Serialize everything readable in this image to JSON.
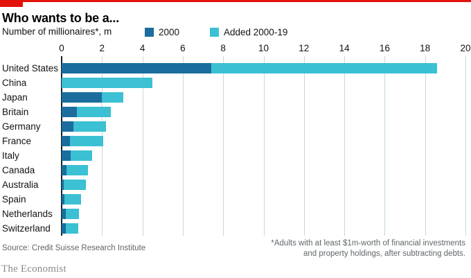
{
  "header": {
    "title": "Who wants to be a...",
    "subtitle": "Number of millionaires*, m"
  },
  "legend": {
    "items": [
      {
        "label": "2000",
        "color": "#1a6d9d"
      },
      {
        "label": "Added 2000-19",
        "color": "#3bc0d4"
      }
    ]
  },
  "chart_data": {
    "type": "bar",
    "orientation": "horizontal",
    "stacked": true,
    "title": "Who wants to be a...",
    "xlabel": "Number of millionaires*, m",
    "ylabel": "",
    "xlim": [
      0,
      20
    ],
    "xticks": [
      0,
      2,
      4,
      6,
      8,
      10,
      12,
      14,
      16,
      18,
      20
    ],
    "grid": "vertical",
    "legend_position": "top",
    "categories": [
      "United States",
      "China",
      "Japan",
      "Britain",
      "Germany",
      "France",
      "Italy",
      "Canada",
      "Australia",
      "Spain",
      "Netherlands",
      "Switzerland"
    ],
    "series": [
      {
        "name": "2000",
        "color": "#1a6d9d",
        "values": [
          7.4,
          0,
          2.0,
          0.75,
          0.6,
          0.4,
          0.45,
          0.25,
          0.1,
          0.15,
          0.2,
          0.2
        ]
      },
      {
        "name": "Added 2000-19",
        "color": "#3bc0d4",
        "values": [
          11.2,
          4.5,
          1.05,
          1.7,
          1.6,
          1.65,
          1.05,
          1.05,
          1.1,
          0.8,
          0.67,
          0.62
        ]
      }
    ],
    "totals": [
      18.6,
      4.5,
      3.05,
      2.45,
      2.2,
      2.05,
      1.5,
      1.3,
      1.2,
      0.95,
      0.87,
      0.82
    ]
  },
  "footer": {
    "source": "Source: Credit Suisse Research Institute",
    "footnote_line1": "*Adults with at least $1m-worth of financial investments",
    "footnote_line2": "and property holdings, after subtracting debts.",
    "brand": "The Economist"
  },
  "colors": {
    "accent_red": "#e3120b",
    "series_2000": "#1a6d9d",
    "series_added": "#3bc0d4",
    "gridline": "#c6d7e0",
    "zero_axis": "#15202b",
    "muted_text": "#5f6569"
  }
}
